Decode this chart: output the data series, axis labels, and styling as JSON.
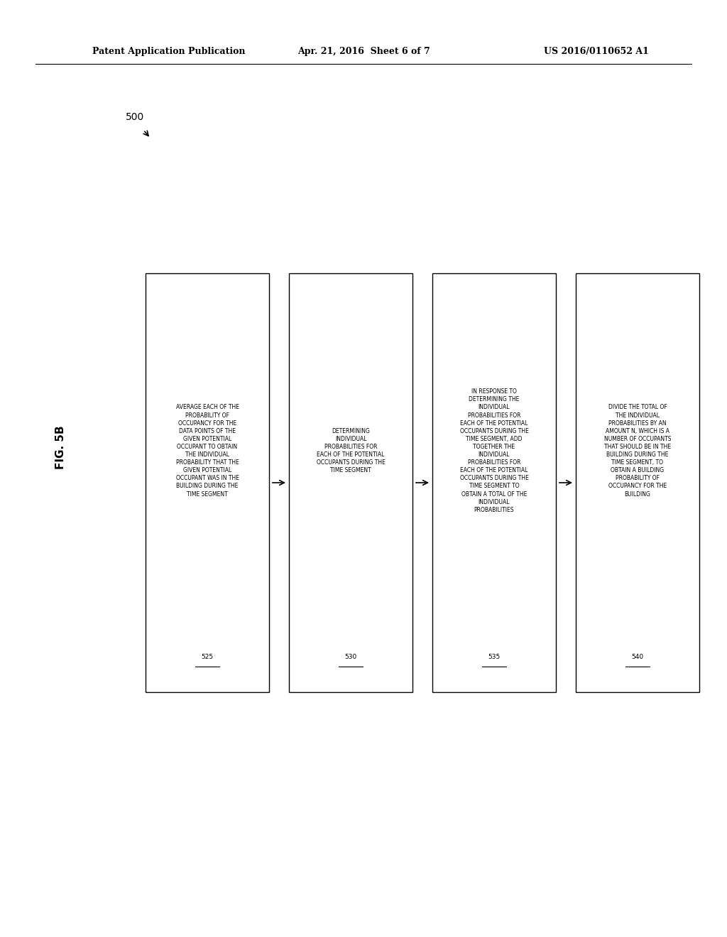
{
  "figure_label": "FIG. 5B",
  "flow_number": "500",
  "header_left": "Patent Application Publication",
  "header_center": "Apr. 21, 2016  Sheet 6 of 7",
  "header_right": "US 2016/0110652 A1",
  "boxes": [
    {
      "text": "AVERAGE EACH OF THE PROBABILITY OF OCCUPANCY FOR THE DATA POINTS OF THE GIVEN POTENTIAL OCCUPANT TO OBTAIN THE INDIVIDUAL PROBABILITY THAT THE GIVEN POTENTIAL OCCUPANT WAS IN THE BUILDING DURING THE TIME SEGMENT",
      "label": "525"
    },
    {
      "text": "DETERMINING INDIVIDUAL PROBABILITIES FOR EACH OF THE POTENTIAL OCCUPANTS DURING THE TIME SEGMENT",
      "label": "530"
    },
    {
      "text": "IN RESPONSE TO DETERMINING THE INDIVIDUAL PROBABILITIES FOR EACH OF THE POTENTIAL OCCUPANTS DURING THE TIME SEGMENT, ADD TOGETHER THE INDIVIDUAL PROBABILITIES FOR EACH OF THE POTENTIAL OCCUPANTS DURING THE TIME SEGMENT TO OBTAIN A TOTAL OF THE INDIVIDUAL PROBABILITIES",
      "label": "535"
    },
    {
      "text": "DIVIDE THE TOTAL OF THE INDIVIDUAL PROBABILITIES BY AN AMOUNT N, WHICH IS A NUMBER OF OCCUPANTS THAT SHOULD BE IN THE BUILDING DURING THE TIME SEGMENT, TO OBTAIN A BUILDING PROBABILITY OF OCCUPANCY FOR THE BUILDING",
      "label": "540"
    }
  ],
  "background_color": "#ffffff",
  "box_facecolor": "#ffffff",
  "box_edgecolor": "#000000",
  "text_color": "#000000",
  "header_color": "#000000",
  "arrow_color": "#000000",
  "fig_width": 10.24,
  "fig_height": 13.2,
  "dpi": 100
}
